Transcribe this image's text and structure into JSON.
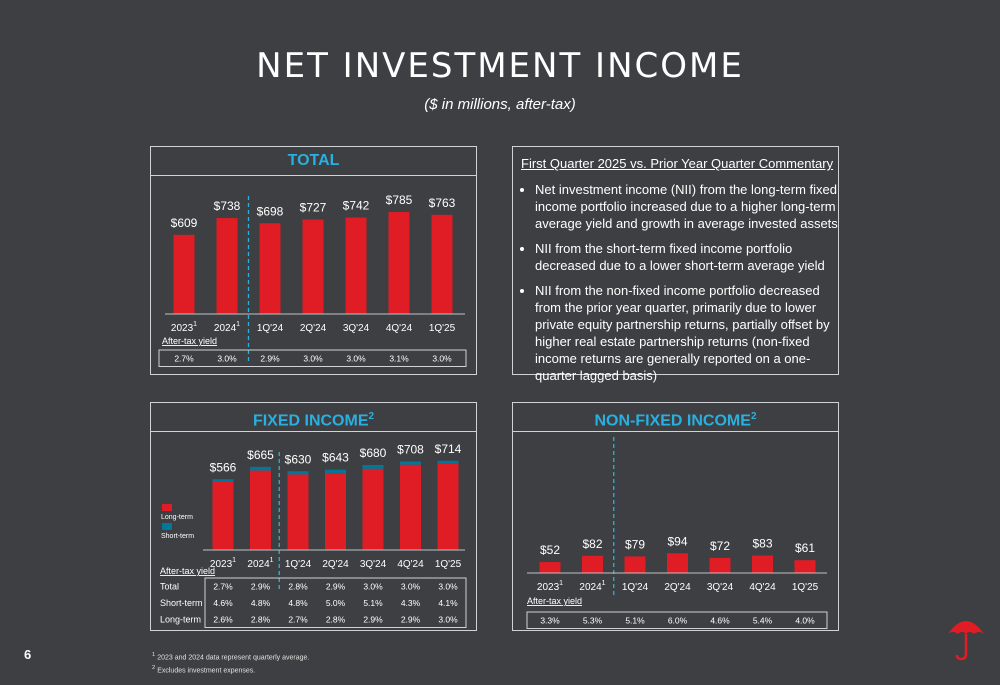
{
  "page": {
    "title": "NET INVESTMENT INCOME",
    "subtitle": "($ in millions, after-tax)",
    "page_number": "6",
    "footnotes": [
      "2023 and 2024 data represent quarterly average.",
      "Excludes investment expenses."
    ],
    "footnote_marks": [
      "1",
      "2"
    ],
    "logo": "umbrella-logo"
  },
  "colors": {
    "long_term": "#e01c24",
    "short_term": "#00789c",
    "header": "#2ab0e0",
    "background": "#3d3f42"
  },
  "commentary": {
    "title": "First Quarter 2025 vs. Prior Year Quarter Commentary",
    "bullets": [
      "Net investment income (NII) from the long-term fixed income portfolio increased due to a higher long-term average yield and growth in average invested assets",
      "NII from the short-term fixed income portfolio decreased due to a lower short-term average yield",
      "NII from the non-fixed income portfolio decreased from the prior year quarter, primarily due to lower private equity partnership returns, partially offset by higher real estate partnership returns (non-fixed income returns are generally reported on a one-quarter lagged basis)"
    ]
  },
  "chart_data": [
    {
      "type": "bar",
      "title": "TOTAL",
      "categories": [
        "2023",
        "2024",
        "1Q'24",
        "2Q'24",
        "3Q'24",
        "4Q'24",
        "1Q'25"
      ],
      "category_marks": [
        "1",
        "1",
        "",
        "",
        "",
        "",
        ""
      ],
      "values": [
        609,
        738,
        698,
        727,
        742,
        785,
        763
      ],
      "labels": [
        "$609",
        "$738",
        "$698",
        "$727",
        "$742",
        "$785",
        "$763"
      ],
      "yield_title": "After-tax yield",
      "yield_rows": [
        {
          "label": "",
          "values": [
            "2.7%",
            "3.0%",
            "2.9%",
            "3.0%",
            "3.0%",
            "3.1%",
            "3.0%"
          ]
        }
      ]
    },
    {
      "type": "bar",
      "stacked": true,
      "title": "FIXED INCOME",
      "title_mark": "2",
      "categories": [
        "2023",
        "2024",
        "1Q'24",
        "2Q'24",
        "3Q'24",
        "4Q'24",
        "1Q'25"
      ],
      "category_marks": [
        "1",
        "1",
        "",
        "",
        "",
        "",
        ""
      ],
      "series": [
        {
          "name": "Long-term",
          "values": [
            545,
            636,
            605,
            617,
            650,
            683,
            690
          ]
        },
        {
          "name": "Short-term",
          "values": [
            21,
            29,
            25,
            26,
            30,
            25,
            24
          ]
        }
      ],
      "totals": [
        566,
        665,
        630,
        643,
        680,
        708,
        714
      ],
      "labels": [
        "$566",
        "$665",
        "$630",
        "$643",
        "$680",
        "$708",
        "$714"
      ],
      "yield_title": "After-tax yield",
      "yield_rows": [
        {
          "label": "Total",
          "values": [
            "2.7%",
            "2.9%",
            "2.8%",
            "2.9%",
            "3.0%",
            "3.0%",
            "3.0%"
          ]
        },
        {
          "label": "Short-term",
          "values": [
            "4.6%",
            "4.8%",
            "4.8%",
            "5.0%",
            "5.1%",
            "4.3%",
            "4.1%"
          ]
        },
        {
          "label": "Long-term",
          "values": [
            "2.6%",
            "2.8%",
            "2.7%",
            "2.8%",
            "2.9%",
            "2.9%",
            "3.0%"
          ]
        }
      ]
    },
    {
      "type": "bar",
      "title": "NON-FIXED INCOME",
      "title_mark": "2",
      "categories": [
        "2023",
        "2024",
        "1Q'24",
        "2Q'24",
        "3Q'24",
        "4Q'24",
        "1Q'25"
      ],
      "category_marks": [
        "1",
        "1",
        "",
        "",
        "",
        "",
        ""
      ],
      "values": [
        52,
        82,
        79,
        94,
        72,
        83,
        61
      ],
      "labels": [
        "$52",
        "$82",
        "$79",
        "$94",
        "$72",
        "$83",
        "$61"
      ],
      "yield_title": "After-tax yield",
      "yield_rows": [
        {
          "label": "",
          "values": [
            "3.3%",
            "5.3%",
            "5.1%",
            "6.0%",
            "4.6%",
            "5.4%",
            "4.0%"
          ]
        }
      ]
    }
  ]
}
